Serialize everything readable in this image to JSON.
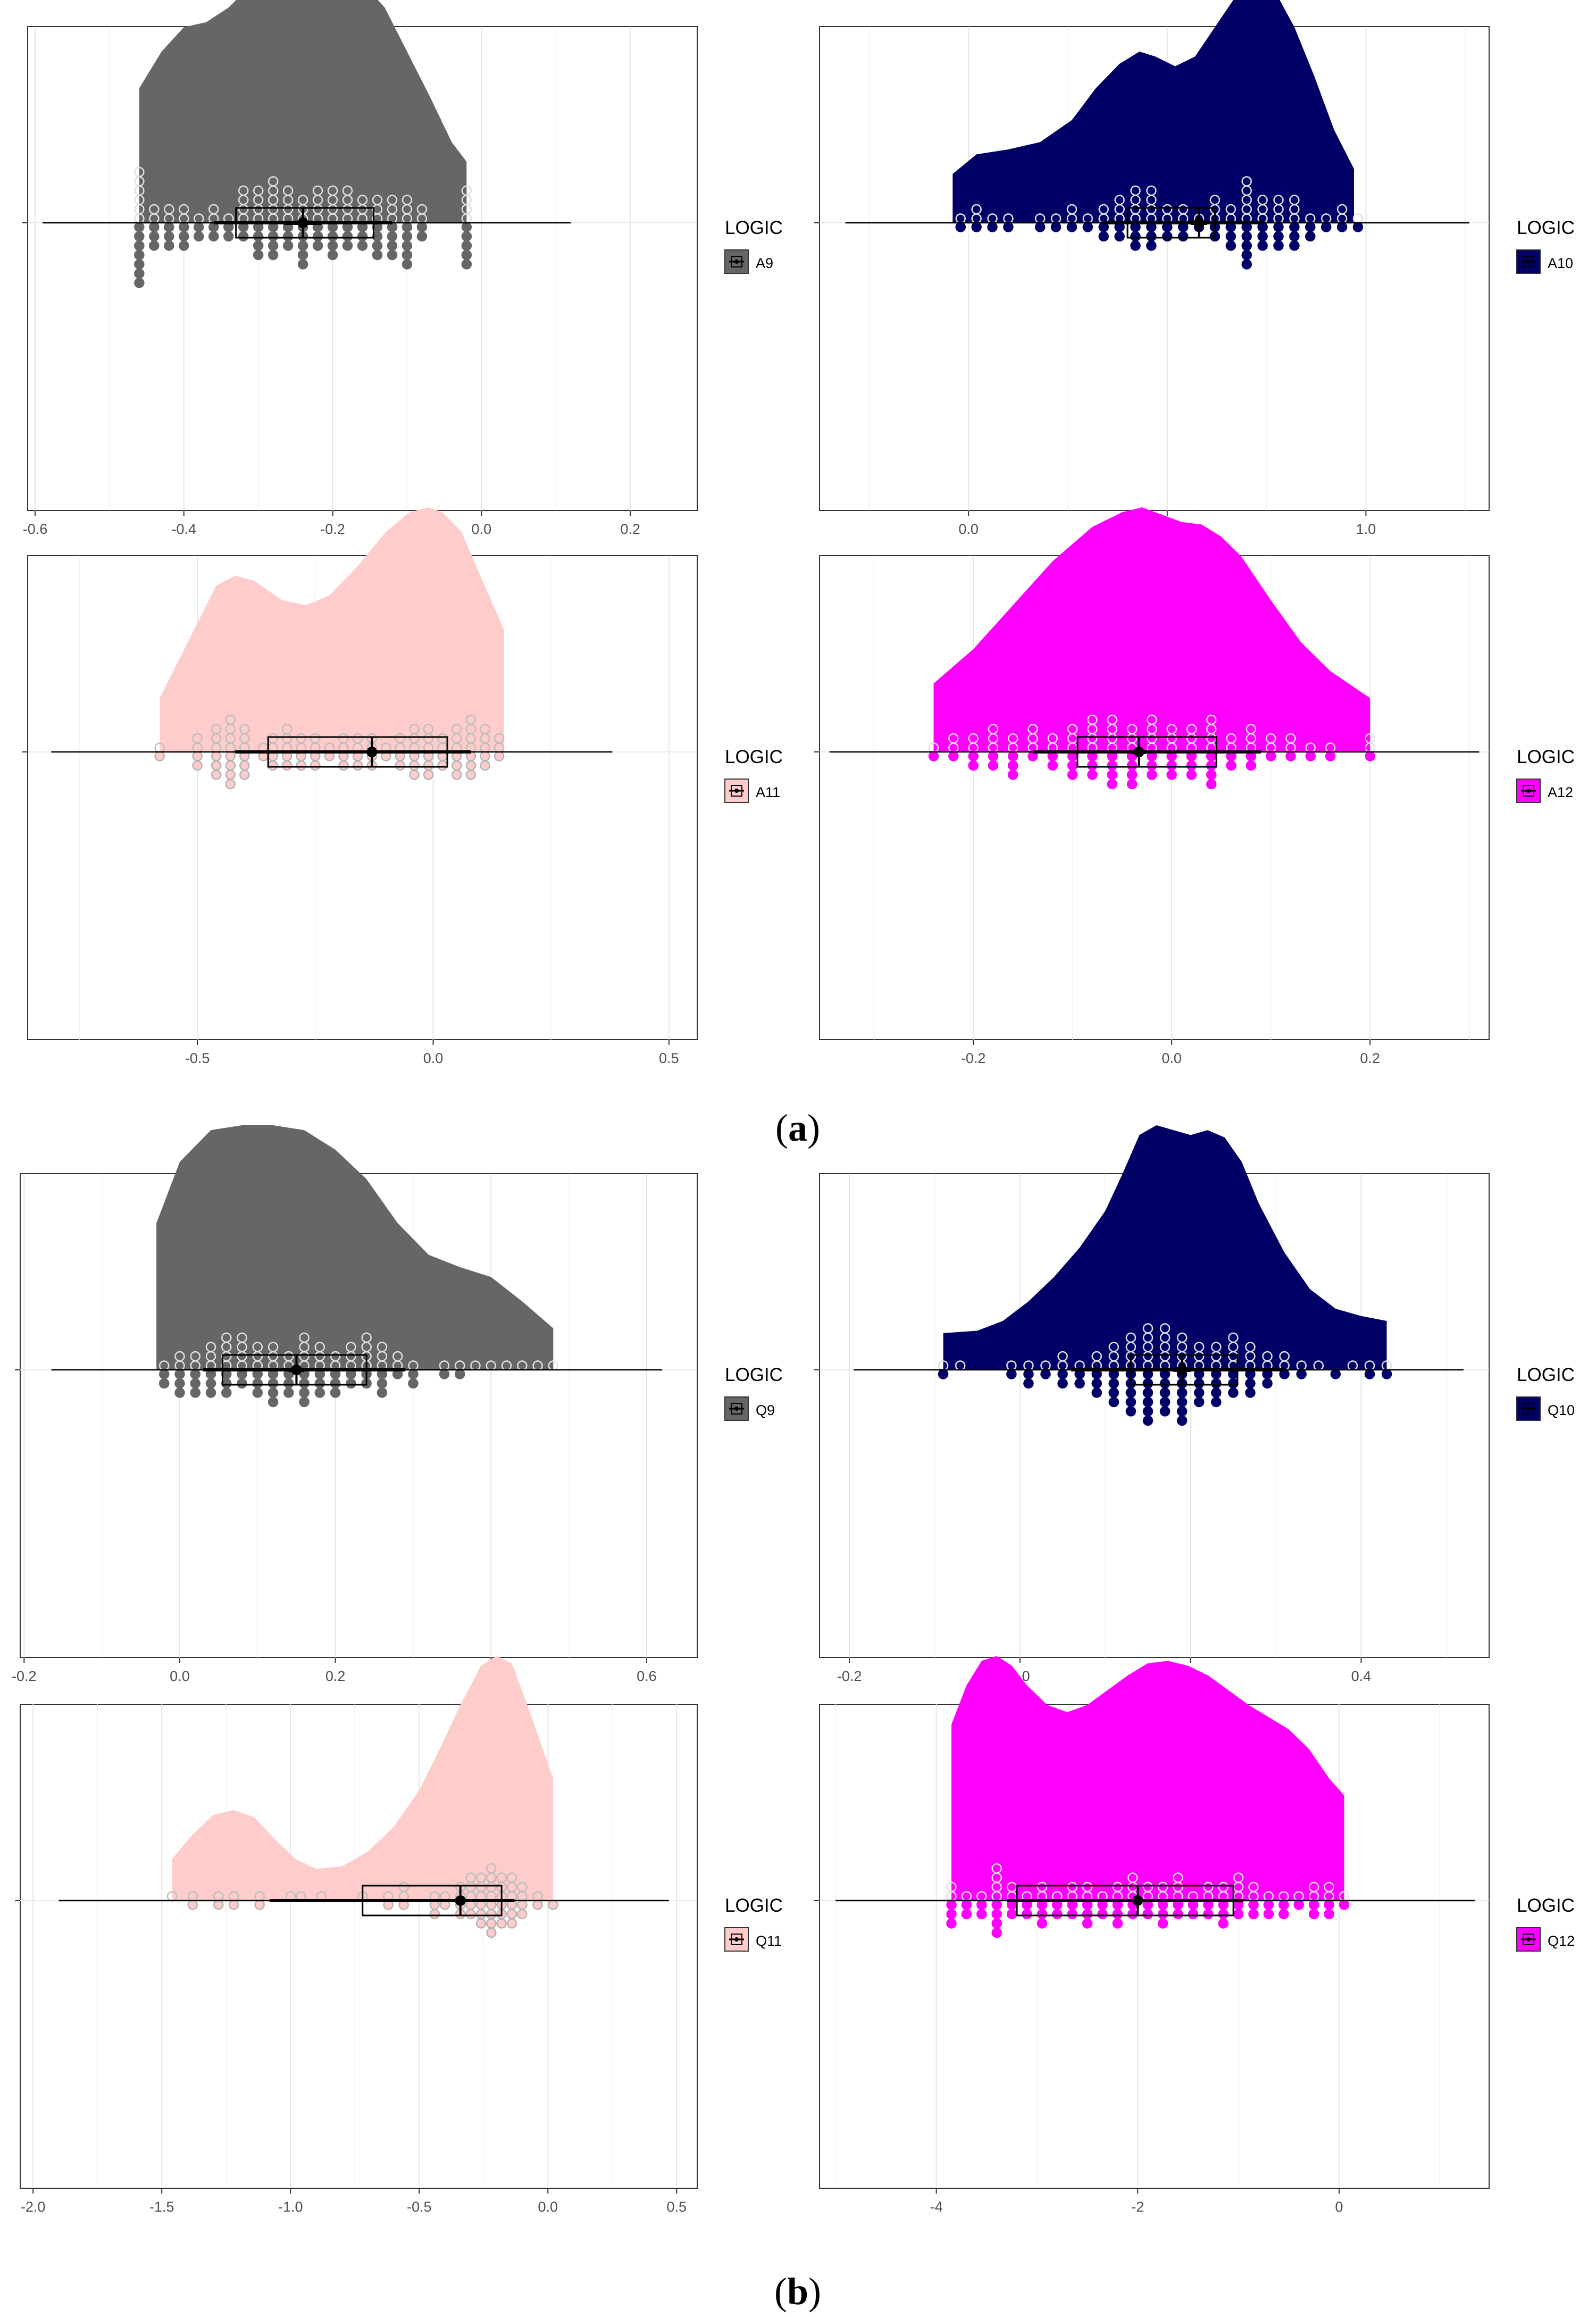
{
  "figure": {
    "panel_labels": [
      {
        "open": "(",
        "letter": "a",
        "close": ")"
      },
      {
        "open": "(",
        "letter": "b",
        "close": ")"
      }
    ]
  },
  "colors": {
    "grey": "#666666",
    "navy": "#000066",
    "pink": "#ffcccc",
    "magenta": "#ff00ff"
  },
  "chart_data": [
    {
      "id": "A9",
      "type": "raincloud",
      "group": "a",
      "legend_title": "LOGIC",
      "legend_label": "A9",
      "color": "grey",
      "x_ticks": [
        -0.6,
        -0.4,
        -0.2,
        0.0,
        0.2
      ],
      "x_tick_labels": [
        "-0.6",
        "-0.4",
        "-0.2",
        "0.0",
        "0.2"
      ],
      "xlim": [
        -0.61,
        0.29
      ],
      "density": {
        "x": [
          -0.46,
          -0.43,
          -0.4,
          -0.37,
          -0.34,
          -0.31,
          -0.28,
          -0.25,
          -0.22,
          -0.19,
          -0.16,
          -0.13,
          -0.1,
          -0.07,
          -0.04,
          -0.02
        ],
        "y": [
          0.55,
          0.7,
          0.8,
          0.82,
          0.88,
          0.97,
          1.0,
          1.0,
          0.99,
          1.0,
          0.98,
          0.88,
          0.7,
          0.52,
          0.33,
          0.25
        ]
      },
      "box": {
        "q1": -0.33,
        "median": -0.24,
        "q3": -0.145
      },
      "mean": -0.24,
      "ci": [
        -0.265,
        -0.215
      ],
      "whisker_line": [
        -0.36,
        -0.12
      ],
      "baseline": [
        -0.59,
        0.12
      ],
      "dot_x": [
        -0.46,
        -0.44,
        -0.42,
        -0.4,
        -0.38,
        -0.36,
        -0.34,
        -0.32,
        -0.3,
        -0.28,
        -0.26,
        -0.24,
        -0.22,
        -0.2,
        -0.18,
        -0.16,
        -0.14,
        -0.12,
        -0.1,
        -0.08,
        -0.02
      ],
      "dot_up": [
        6,
        2,
        2,
        2,
        1,
        2,
        1,
        4,
        4,
        5,
        4,
        3,
        4,
        4,
        4,
        3,
        3,
        3,
        3,
        2,
        4
      ],
      "dot_down": [
        7,
        3,
        3,
        3,
        2,
        2,
        2,
        2,
        4,
        4,
        3,
        5,
        3,
        4,
        3,
        3,
        4,
        4,
        5,
        2,
        5
      ]
    },
    {
      "id": "A10",
      "type": "raincloud",
      "group": "a",
      "legend_title": "LOGIC",
      "legend_label": "A10",
      "color": "navy",
      "x_ticks": [
        0.0,
        0.5,
        1.0
      ],
      "x_tick_labels": [
        "0.0",
        "0.5",
        "1.0"
      ],
      "xlim": [
        -0.375,
        1.31
      ],
      "density": {
        "x": [
          -0.04,
          0.02,
          0.1,
          0.18,
          0.26,
          0.32,
          0.38,
          0.43,
          0.47,
          0.52,
          0.57,
          0.62,
          0.67,
          0.72,
          0.77,
          0.82,
          0.87,
          0.92,
          0.97
        ],
        "y": [
          0.2,
          0.28,
          0.3,
          0.33,
          0.42,
          0.55,
          0.65,
          0.7,
          0.68,
          0.64,
          0.68,
          0.8,
          0.92,
          1.0,
          0.95,
          0.8,
          0.6,
          0.38,
          0.22
        ]
      },
      "box": {
        "q1": 0.4,
        "median": 0.58,
        "q3": 0.62
      },
      "mean": 0.58,
      "ci": [
        0.56,
        0.6
      ],
      "whisker_line": [
        0.34,
        0.74
      ],
      "baseline": [
        -0.31,
        1.26
      ],
      "dot_x": [
        -0.02,
        0.02,
        0.06,
        0.1,
        0.14,
        0.18,
        0.22,
        0.26,
        0.3,
        0.34,
        0.38,
        0.42,
        0.46,
        0.5,
        0.54,
        0.58,
        0.62,
        0.66,
        0.7,
        0.74,
        0.78,
        0.82,
        0.86,
        0.9,
        0.94,
        0.98
      ],
      "dot_up": [
        1,
        2,
        1,
        1,
        0,
        1,
        1,
        2,
        1,
        2,
        3,
        4,
        4,
        2,
        2,
        1,
        3,
        2,
        5,
        3,
        3,
        3,
        1,
        1,
        2,
        1
      ],
      "dot_down": [
        1,
        1,
        1,
        1,
        0,
        1,
        1,
        1,
        1,
        2,
        2,
        3,
        3,
        2,
        2,
        1,
        2,
        3,
        5,
        3,
        3,
        3,
        2,
        1,
        1,
        1
      ]
    },
    {
      "id": "A11",
      "type": "raincloud",
      "group": "a",
      "legend_title": "LOGIC",
      "legend_label": "A11",
      "color": "pink",
      "x_ticks": [
        -0.5,
        0.0,
        0.5
      ],
      "x_tick_labels": [
        "-0.5",
        "0.0",
        "0.5"
      ],
      "xlim": [
        -0.86,
        0.56
      ],
      "density": {
        "x": [
          -0.58,
          -0.52,
          -0.46,
          -0.42,
          -0.38,
          -0.32,
          -0.27,
          -0.22,
          -0.16,
          -0.1,
          -0.05,
          -0.01,
          0.02,
          0.06,
          0.1,
          0.15
        ],
        "y": [
          0.22,
          0.45,
          0.68,
          0.72,
          0.7,
          0.62,
          0.6,
          0.64,
          0.76,
          0.9,
          0.98,
          1.0,
          0.98,
          0.9,
          0.72,
          0.5
        ]
      },
      "box": {
        "q1": -0.35,
        "median": -0.135,
        "q3": 0.03
      },
      "mean": -0.13,
      "ci": [
        -0.14,
        -0.12
      ],
      "whisker_line": [
        -0.42,
        0.08
      ],
      "baseline": [
        -0.81,
        0.38
      ],
      "dot_x": [
        -0.58,
        -0.5,
        -0.46,
        -0.43,
        -0.4,
        -0.36,
        -0.34,
        -0.31,
        -0.28,
        -0.25,
        -0.22,
        -0.19,
        -0.16,
        -0.13,
        -0.1,
        -0.07,
        -0.04,
        -0.01,
        0.02,
        0.05,
        0.08,
        0.11,
        0.14
      ],
      "dot_up": [
        1,
        2,
        3,
        4,
        3,
        1,
        2,
        3,
        2,
        2,
        1,
        2,
        2,
        2,
        1,
        2,
        3,
        3,
        2,
        3,
        4,
        3,
        2
      ],
      "dot_down": [
        1,
        2,
        3,
        4,
        3,
        1,
        2,
        2,
        2,
        2,
        1,
        2,
        2,
        2,
        1,
        2,
        3,
        3,
        2,
        3,
        3,
        2,
        1
      ]
    },
    {
      "id": "A12",
      "type": "raincloud",
      "group": "a",
      "legend_title": "LOGIC",
      "legend_label": "A12",
      "color": "magenta",
      "x_ticks": [
        -0.2,
        0.0,
        0.2
      ],
      "x_tick_labels": [
        "-0.2",
        "0.0",
        "0.2"
      ],
      "xlim": [
        -0.355,
        0.32
      ],
      "density": {
        "x": [
          -0.24,
          -0.2,
          -0.16,
          -0.12,
          -0.08,
          -0.05,
          -0.03,
          -0.01,
          0.01,
          0.03,
          0.05,
          0.07,
          0.1,
          0.13,
          0.16,
          0.2
        ],
        "y": [
          0.28,
          0.42,
          0.6,
          0.78,
          0.92,
          0.98,
          1.0,
          0.97,
          0.94,
          0.93,
          0.88,
          0.8,
          0.62,
          0.45,
          0.33,
          0.22
        ]
      },
      "box": {
        "q1": -0.095,
        "median": -0.035,
        "q3": 0.045
      },
      "mean": -0.033,
      "ci": [
        -0.04,
        -0.026
      ],
      "whisker_line": [
        -0.14,
        0.09
      ],
      "baseline": [
        -0.345,
        0.31
      ],
      "dot_x": [
        -0.24,
        -0.22,
        -0.2,
        -0.18,
        -0.16,
        -0.14,
        -0.12,
        -0.1,
        -0.08,
        -0.06,
        -0.04,
        -0.02,
        0.0,
        0.02,
        0.04,
        0.06,
        0.08,
        0.1,
        0.12,
        0.14,
        0.16,
        0.2
      ],
      "dot_up": [
        1,
        2,
        2,
        3,
        2,
        3,
        2,
        3,
        4,
        4,
        3,
        4,
        3,
        3,
        4,
        2,
        3,
        2,
        2,
        1,
        1,
        2
      ],
      "dot_down": [
        1,
        1,
        2,
        2,
        3,
        1,
        2,
        3,
        3,
        4,
        4,
        3,
        3,
        3,
        4,
        2,
        2,
        1,
        1,
        1,
        1,
        1
      ]
    },
    {
      "id": "Q9",
      "type": "raincloud",
      "group": "b",
      "legend_title": "LOGIC",
      "legend_label": "Q9",
      "color": "grey",
      "x_ticks": [
        -0.2,
        0.0,
        0.2,
        0.4,
        0.6
      ],
      "x_tick_labels": [
        "-0.2",
        "0.0",
        "0.2",
        "0.4",
        "0.6"
      ],
      "xlim": [
        -0.205,
        0.665
      ],
      "density": {
        "x": [
          -0.03,
          0.0,
          0.04,
          0.08,
          0.12,
          0.16,
          0.2,
          0.24,
          0.28,
          0.32,
          0.36,
          0.4,
          0.44,
          0.48
        ],
        "y": [
          0.6,
          0.85,
          0.98,
          1.0,
          1.0,
          0.98,
          0.9,
          0.78,
          0.6,
          0.47,
          0.42,
          0.38,
          0.28,
          0.17
        ]
      },
      "box": {
        "q1": 0.055,
        "median": 0.15,
        "q3": 0.24
      },
      "mean": 0.15,
      "ci": [
        0.14,
        0.16
      ],
      "whisker_line": [
        0.03,
        0.29
      ],
      "baseline": [
        -0.165,
        0.62
      ],
      "dot_x": [
        -0.02,
        0.0,
        0.02,
        0.04,
        0.06,
        0.08,
        0.1,
        0.12,
        0.14,
        0.16,
        0.18,
        0.2,
        0.22,
        0.24,
        0.26,
        0.28,
        0.3,
        0.34,
        0.36,
        0.38,
        0.4,
        0.42,
        0.44,
        0.46,
        0.48
      ],
      "dot_up": [
        1,
        2,
        2,
        3,
        4,
        4,
        3,
        3,
        2,
        4,
        3,
        2,
        3,
        4,
        3,
        2,
        1,
        1,
        1,
        1,
        1,
        1,
        1,
        1,
        1
      ],
      "dot_down": [
        2,
        3,
        3,
        3,
        3,
        2,
        3,
        4,
        3,
        4,
        3,
        3,
        2,
        2,
        3,
        1,
        2,
        1,
        1,
        0,
        0,
        0,
        0,
        0,
        0
      ]
    },
    {
      "id": "Q10",
      "type": "raincloud",
      "group": "b",
      "legend_title": "LOGIC",
      "legend_label": "Q10",
      "color": "navy",
      "x_ticks": [
        -0.2,
        0.0,
        0.2,
        0.4
      ],
      "x_tick_labels": [
        "-0.2",
        "0.0",
        "0.2",
        "0.4"
      ],
      "xlim": [
        -0.235,
        0.55
      ],
      "density": {
        "x": [
          -0.09,
          -0.05,
          -0.02,
          0.01,
          0.04,
          0.07,
          0.1,
          0.12,
          0.14,
          0.16,
          0.18,
          0.2,
          0.22,
          0.24,
          0.26,
          0.28,
          0.31,
          0.34,
          0.37,
          0.4,
          0.43
        ],
        "y": [
          0.15,
          0.16,
          0.2,
          0.28,
          0.38,
          0.5,
          0.65,
          0.8,
          0.96,
          1.0,
          0.98,
          0.96,
          0.98,
          0.95,
          0.85,
          0.68,
          0.48,
          0.33,
          0.25,
          0.22,
          0.2
        ]
      },
      "box": {
        "q1": 0.13,
        "median": 0.19,
        "q3": 0.255
      },
      "mean": 0.19,
      "ci": [
        0.18,
        0.2
      ],
      "whisker_line": [
        0.06,
        0.31
      ],
      "baseline": [
        -0.195,
        0.52
      ],
      "dot_x": [
        -0.09,
        -0.07,
        -0.05,
        -0.01,
        0.01,
        0.03,
        0.05,
        0.07,
        0.09,
        0.11,
        0.13,
        0.15,
        0.17,
        0.19,
        0.21,
        0.23,
        0.25,
        0.27,
        0.29,
        0.31,
        0.33,
        0.35,
        0.37,
        0.39,
        0.41,
        0.43
      ],
      "dot_up": [
        1,
        1,
        0,
        1,
        1,
        1,
        2,
        1,
        2,
        3,
        4,
        5,
        5,
        4,
        3,
        3,
        4,
        3,
        2,
        2,
        1,
        1,
        0,
        1,
        1,
        1
      ],
      "dot_down": [
        1,
        0,
        0,
        1,
        2,
        1,
        2,
        2,
        3,
        4,
        5,
        6,
        5,
        6,
        4,
        4,
        3,
        3,
        2,
        1,
        1,
        0,
        1,
        0,
        1,
        1
      ]
    },
    {
      "id": "Q11",
      "type": "raincloud",
      "group": "b",
      "legend_title": "LOGIC",
      "legend_label": "Q11",
      "color": "pink",
      "x_ticks": [
        -2.0,
        -1.5,
        -1.0,
        -0.5,
        0.0,
        0.5
      ],
      "x_tick_labels": [
        "-2.0",
        "-1.5",
        "-1.0",
        "-0.5",
        "0.0",
        "0.5"
      ],
      "xlim": [
        -2.05,
        0.58
      ],
      "density": {
        "x": [
          -1.46,
          -1.38,
          -1.3,
          -1.22,
          -1.14,
          -1.06,
          -0.98,
          -0.9,
          -0.8,
          -0.7,
          -0.6,
          -0.5,
          -0.42,
          -0.34,
          -0.26,
          -0.2,
          -0.14,
          -0.08,
          0.02
        ],
        "y": [
          0.17,
          0.27,
          0.35,
          0.37,
          0.34,
          0.25,
          0.17,
          0.13,
          0.14,
          0.2,
          0.3,
          0.45,
          0.62,
          0.8,
          0.96,
          1.0,
          0.97,
          0.8,
          0.5
        ]
      },
      "box": {
        "q1": -0.72,
        "median": -0.34,
        "q3": -0.18
      },
      "mean": -0.34,
      "ci": [
        -0.36,
        -0.32
      ],
      "whisker_line": [
        -1.08,
        -0.13
      ],
      "baseline": [
        -1.9,
        0.47
      ],
      "dot_x": [
        -1.46,
        -1.38,
        -1.28,
        -1.22,
        -1.12,
        -1.04,
        -1.0,
        -0.96,
        -0.88,
        -0.8,
        -0.72,
        -0.62,
        -0.56,
        -0.44,
        -0.4,
        -0.34,
        -0.3,
        -0.26,
        -0.22,
        -0.18,
        -0.14,
        -0.1,
        -0.04,
        0.02
      ],
      "dot_up": [
        1,
        1,
        1,
        1,
        1,
        0,
        1,
        1,
        1,
        0,
        1,
        1,
        2,
        1,
        1,
        2,
        3,
        3,
        4,
        3,
        3,
        2,
        1,
        0
      ],
      "dot_down": [
        0,
        1,
        1,
        1,
        1,
        0,
        0,
        0,
        0,
        0,
        0,
        1,
        1,
        2,
        1,
        2,
        2,
        3,
        4,
        3,
        3,
        2,
        1,
        1
      ]
    },
    {
      "id": "Q12",
      "type": "raincloud",
      "group": "b",
      "legend_title": "LOGIC",
      "legend_label": "Q12",
      "color": "magenta",
      "x_ticks": [
        -4,
        -2,
        0
      ],
      "x_tick_labels": [
        "-4",
        "-2",
        "0"
      ],
      "xlim": [
        -5.16,
        1.49
      ],
      "density": {
        "x": [
          -3.85,
          -3.7,
          -3.55,
          -3.4,
          -3.25,
          -3.1,
          -2.9,
          -2.7,
          -2.5,
          -2.3,
          -2.1,
          -1.9,
          -1.7,
          -1.5,
          -1.3,
          -1.1,
          -0.9,
          -0.7,
          -0.5,
          -0.3,
          -0.1,
          0.05
        ],
        "y": [
          0.72,
          0.88,
          0.98,
          1.0,
          0.96,
          0.88,
          0.8,
          0.77,
          0.8,
          0.86,
          0.92,
          0.97,
          0.98,
          0.96,
          0.92,
          0.86,
          0.8,
          0.75,
          0.7,
          0.62,
          0.5,
          0.43
        ]
      },
      "box": {
        "q1": -3.2,
        "median": -2.0,
        "q3": -1.05
      },
      "mean": -2.0,
      "ci": [
        -2.05,
        -1.95
      ],
      "whisker_line": [
        -3.3,
        -0.95
      ],
      "baseline": [
        -5.0,
        1.35
      ],
      "dot_x": [
        -3.85,
        -3.7,
        -3.55,
        -3.4,
        -3.25,
        -3.1,
        -2.95,
        -2.8,
        -2.65,
        -2.5,
        -2.35,
        -2.2,
        -2.05,
        -1.9,
        -1.75,
        -1.6,
        -1.45,
        -1.3,
        -1.15,
        -1.0,
        -0.85,
        -0.7,
        -0.55,
        -0.4,
        -0.25,
        -0.1,
        0.05
      ],
      "dot_up": [
        2,
        1,
        1,
        4,
        2,
        1,
        2,
        1,
        2,
        2,
        1,
        2,
        3,
        2,
        2,
        3,
        1,
        2,
        2,
        3,
        2,
        1,
        1,
        1,
        2,
        2,
        1
      ],
      "dot_down": [
        3,
        2,
        2,
        4,
        2,
        2,
        3,
        2,
        2,
        3,
        2,
        3,
        2,
        2,
        3,
        2,
        2,
        2,
        3,
        2,
        2,
        2,
        2,
        1,
        2,
        2,
        1
      ]
    }
  ]
}
